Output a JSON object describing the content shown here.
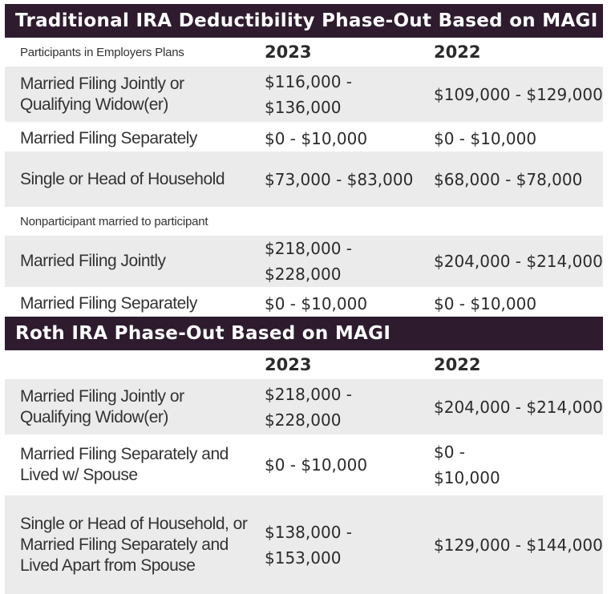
{
  "traditional": {
    "title": "Traditional IRA Deductibility Phase-Out Based on MAGI",
    "participants_label": "Participants in Employers Plans",
    "years": [
      "2023",
      "2022"
    ],
    "participant_rows": [
      {
        "label": "Married Filing Jointly or Qualifying Widow(er)",
        "y2023": "$116,000 - $136,000",
        "y2022": "$109,000 - $129,000"
      },
      {
        "label": "Married Filing Separately",
        "y2023": "$0 - $10,000",
        "y2022": "$0 - $10,000"
      },
      {
        "label": "Single or Head of Household",
        "y2023": "$73,000 - $83,000",
        "y2022": "$68,000 - $78,000"
      }
    ],
    "nonparticipant_label": "Nonparticipant married to participant",
    "nonparticipant_rows": [
      {
        "label": "Married Filing Jointly",
        "y2023": "$218,000 - $228,000",
        "y2022": "$204,000 - $214,000"
      },
      {
        "label": "Married Filing Separately",
        "y2023": "$0 - $10,000",
        "y2022": "$0 - $10,000"
      }
    ]
  },
  "roth": {
    "title": "Roth IRA Phase-Out Based on MAGI",
    "years": [
      "2023",
      "2022"
    ],
    "rows": [
      {
        "label": "Married Filing Jointly or Qualifying Widow(er)",
        "y2023": "$218,000 - $228,000",
        "y2022": "$204,000 - $214,000"
      },
      {
        "label": "Married Filing Separately and Lived w/ Spouse",
        "y2023": "$0 - $10,000",
        "y2022": "$0 - $10,000"
      },
      {
        "label": "Single or Head of Household, or Married Filing Separately and Lived Apart from Spouse",
        "y2023": "$138,000 - $153,000",
        "y2022": "$129,000 - $144,000"
      }
    ]
  }
}
